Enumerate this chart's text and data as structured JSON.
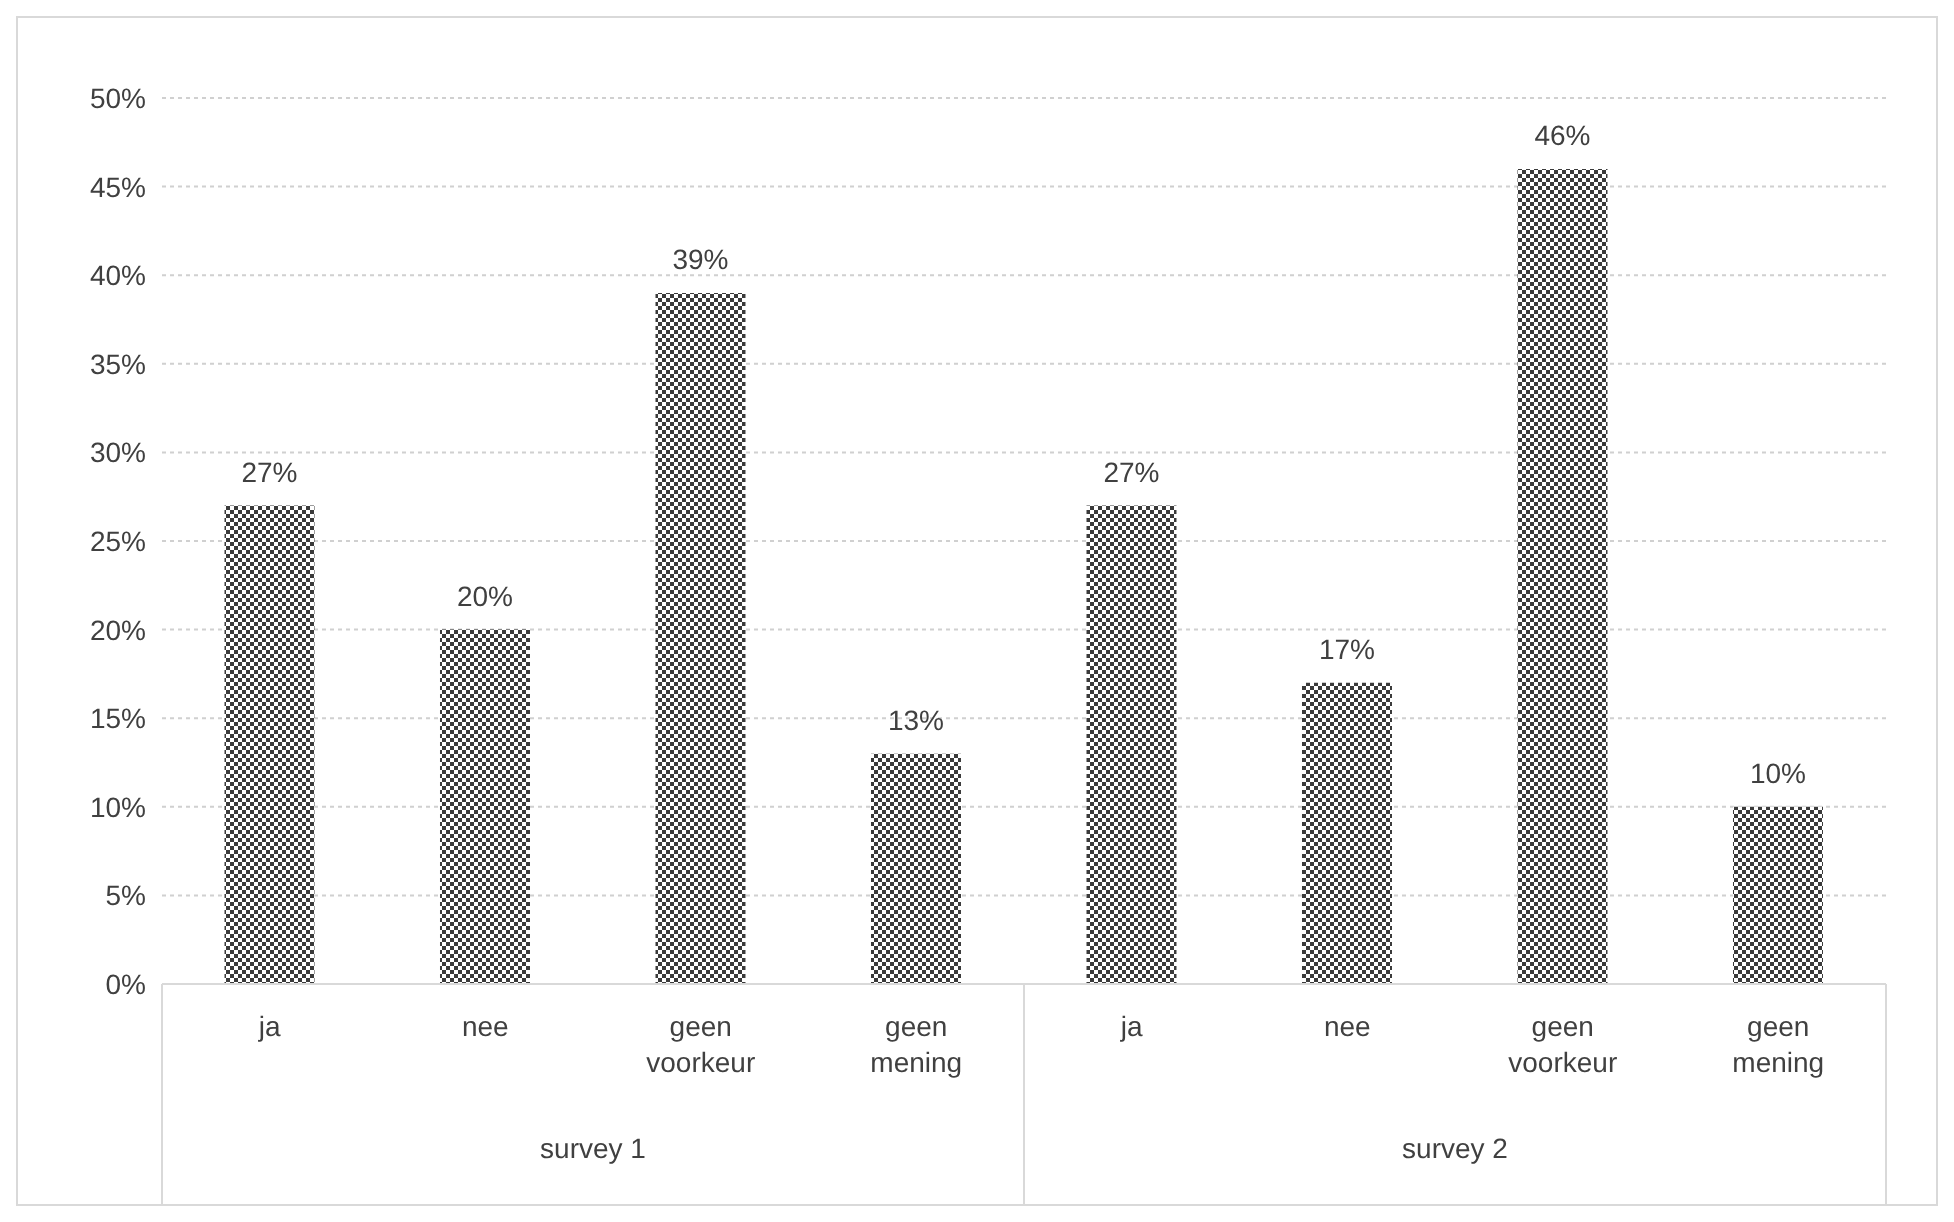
{
  "chart_data": {
    "type": "bar",
    "categories": [
      "ja",
      "nee",
      "geen voorkeur",
      "geen mening",
      "ja",
      "nee",
      "geen voorkeur",
      "geen mening"
    ],
    "values": [
      27,
      20,
      39,
      13,
      27,
      17,
      46,
      10
    ],
    "value_labels": [
      "27%",
      "20%",
      "39%",
      "13%",
      "27%",
      "17%",
      "46%",
      "10%"
    ],
    "color": "#3a3a3a",
    "ylim": [
      0,
      50
    ],
    "yticks": [
      {
        "value": 0,
        "label": "0%"
      },
      {
        "value": 5,
        "label": "5%"
      },
      {
        "value": 10,
        "label": "10%"
      },
      {
        "value": 15,
        "label": "15%"
      },
      {
        "value": 20,
        "label": "20%"
      },
      {
        "value": 25,
        "label": "25%"
      },
      {
        "value": 30,
        "label": "30%"
      },
      {
        "value": 35,
        "label": "35%"
      },
      {
        "value": 40,
        "label": "40%"
      },
      {
        "value": 45,
        "label": "45%"
      },
      {
        "value": 50,
        "label": "50%"
      }
    ],
    "grid": "y",
    "annotations": [
      "survey 1",
      "survey 2"
    ]
  }
}
